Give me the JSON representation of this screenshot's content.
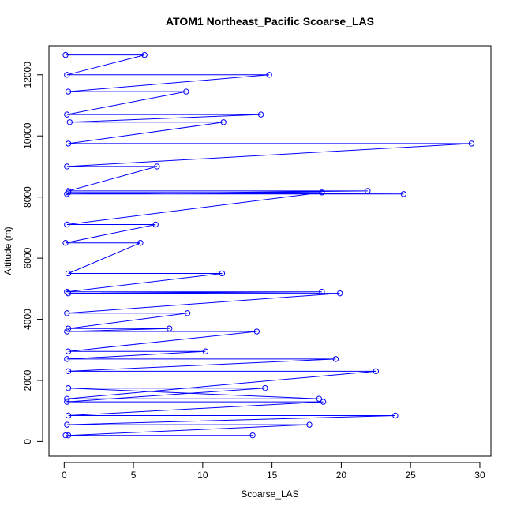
{
  "chart_data": {
    "type": "line",
    "title": "ATOM1 Northeast_Pacific Scoarse_LAS",
    "xlabel": "Scoarse_LAS",
    "ylabel": "Altitude (m)",
    "xlim": [
      -1.1,
      30.8
    ],
    "ylim": [
      -480,
      12950
    ],
    "xticks": [
      "0",
      "5",
      "10",
      "15",
      "20",
      "25",
      "30"
    ],
    "yticks": [
      "0",
      "2000",
      "4000",
      "6000",
      "8000",
      "10000",
      "12000"
    ],
    "grid": false,
    "legend": "none",
    "series_color": "#0000ff",
    "marker": "open-circle",
    "series": [
      {
        "x": [
          0.1,
          5.8,
          0.2,
          14.8,
          0.3,
          8.8,
          0.2,
          14.2,
          0.4,
          11.5,
          0.3,
          29.4,
          0.2,
          6.7,
          0.3,
          21.9,
          0.2,
          24.5,
          0.3,
          18.6,
          0.2,
          6.6,
          0.1,
          5.5,
          0.3,
          11.4,
          0.2,
          18.6,
          0.3,
          19.9,
          0.2,
          8.9,
          0.3,
          7.6,
          0.2,
          13.9,
          0.3,
          10.2,
          0.2,
          19.6,
          0.3,
          22.5,
          0.2,
          18.4,
          0.3,
          14.5,
          0.2,
          18.7,
          0.3,
          23.9,
          0.2,
          17.7,
          0.3,
          13.6,
          0.1
        ],
        "y": [
          12650,
          12650,
          12000,
          12000,
          11450,
          11450,
          10700,
          10700,
          10450,
          10450,
          9750,
          9750,
          9000,
          9000,
          8200,
          8200,
          8100,
          8100,
          8150,
          8150,
          7100,
          7100,
          6500,
          6500,
          5500,
          5500,
          4900,
          4900,
          4850,
          4850,
          4200,
          4200,
          3700,
          3700,
          3600,
          3600,
          2950,
          2950,
          2700,
          2700,
          2300,
          2300,
          1400,
          1400,
          1750,
          1750,
          1300,
          1300,
          850,
          850,
          550,
          550,
          200,
          200,
          200
        ]
      }
    ]
  }
}
